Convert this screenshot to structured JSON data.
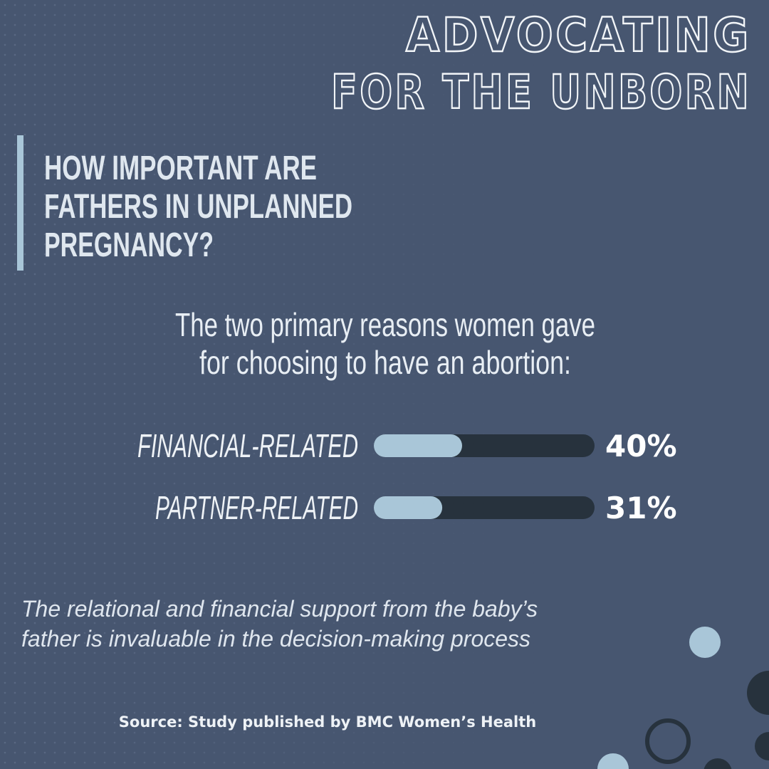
{
  "brand": [
    "ADVOCATING",
    "FOR THE UNBORN"
  ],
  "question": [
    "HOW IMPORTANT ARE",
    "FATHERS IN UNPLANNED",
    "PREGNANCY?"
  ],
  "chart_data": {
    "type": "bar",
    "title": [
      "The two primary reasons women gave",
      "for choosing to have an abortion:"
    ],
    "categories": [
      "FINANCIAL-RELATED",
      "PARTNER-RELATED"
    ],
    "values": [
      40,
      31
    ],
    "value_labels": [
      "40%",
      "31%"
    ],
    "xlim": [
      0,
      100
    ],
    "color": "#a9c6d8",
    "track_color": "#27323d"
  },
  "note": [
    "The relational and financial support from the baby’s",
    "father is invaluable in the decision-making process"
  ],
  "source": "Source: Study published by BMC Women’s Health"
}
